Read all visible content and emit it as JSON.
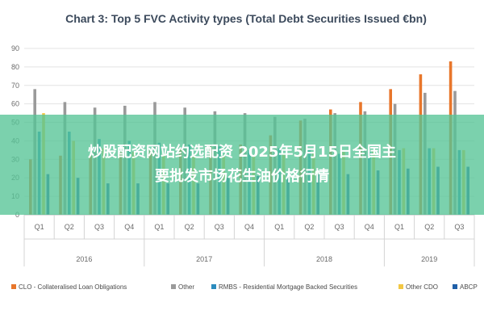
{
  "chart_data": {
    "type": "bar",
    "title": "Chart 3: Top 5 FVC Activity types (Total Debt Securities Issued €bn)",
    "xlabel": "",
    "ylabel": "",
    "ylim": [
      0,
      90
    ],
    "yticks": [
      0,
      10,
      20,
      30,
      40,
      50,
      60,
      70,
      80,
      90
    ],
    "grid": true,
    "legend_position": "bottom",
    "categories": [
      "Q1",
      "Q2",
      "Q3",
      "Q4",
      "Q1",
      "Q2",
      "Q3",
      "Q4",
      "Q1",
      "Q2",
      "Q3",
      "Q4",
      "Q1",
      "Q2",
      "Q3"
    ],
    "years": [
      {
        "label": "2016",
        "count": 4
      },
      {
        "label": "2017",
        "count": 4
      },
      {
        "label": "2018",
        "count": 4
      },
      {
        "label": "2019",
        "count": 3
      }
    ],
    "series": [
      {
        "name": "CLO - Collateralised Loan Obligations",
        "color": "#e8762b",
        "values": [
          30,
          32,
          32,
          34,
          35,
          36,
          37,
          38,
          43,
          51,
          57,
          61,
          68,
          76,
          83
        ]
      },
      {
        "name": "Other",
        "color": "#9a9a9a",
        "values": [
          68,
          61,
          58,
          59,
          61,
          58,
          56,
          55,
          53,
          52,
          55,
          56,
          60,
          66,
          67
        ]
      },
      {
        "name": "RMBS - Residential Mortgage Backed Securities",
        "color": "#2b8cbe",
        "values": [
          45,
          45,
          41,
          40,
          39,
          38,
          37,
          35,
          36,
          35,
          33,
          34,
          35,
          36,
          35
        ]
      },
      {
        "name": "Other CDO",
        "color": "#f2c744",
        "values": [
          55,
          40,
          36,
          34,
          33,
          33,
          32,
          32,
          33,
          34,
          34,
          35,
          36,
          36,
          35
        ]
      },
      {
        "name": "ABCP",
        "color": "#1f5fa8",
        "values": [
          22,
          20,
          17,
          17,
          17,
          17,
          20,
          21,
          22,
          22,
          22,
          24,
          25,
          26,
          26
        ]
      }
    ]
  },
  "overlay": {
    "line1": "炒股配资网站约选配资 2025年5月15日全国主",
    "line2": "要批发市场花生油价格行情"
  }
}
